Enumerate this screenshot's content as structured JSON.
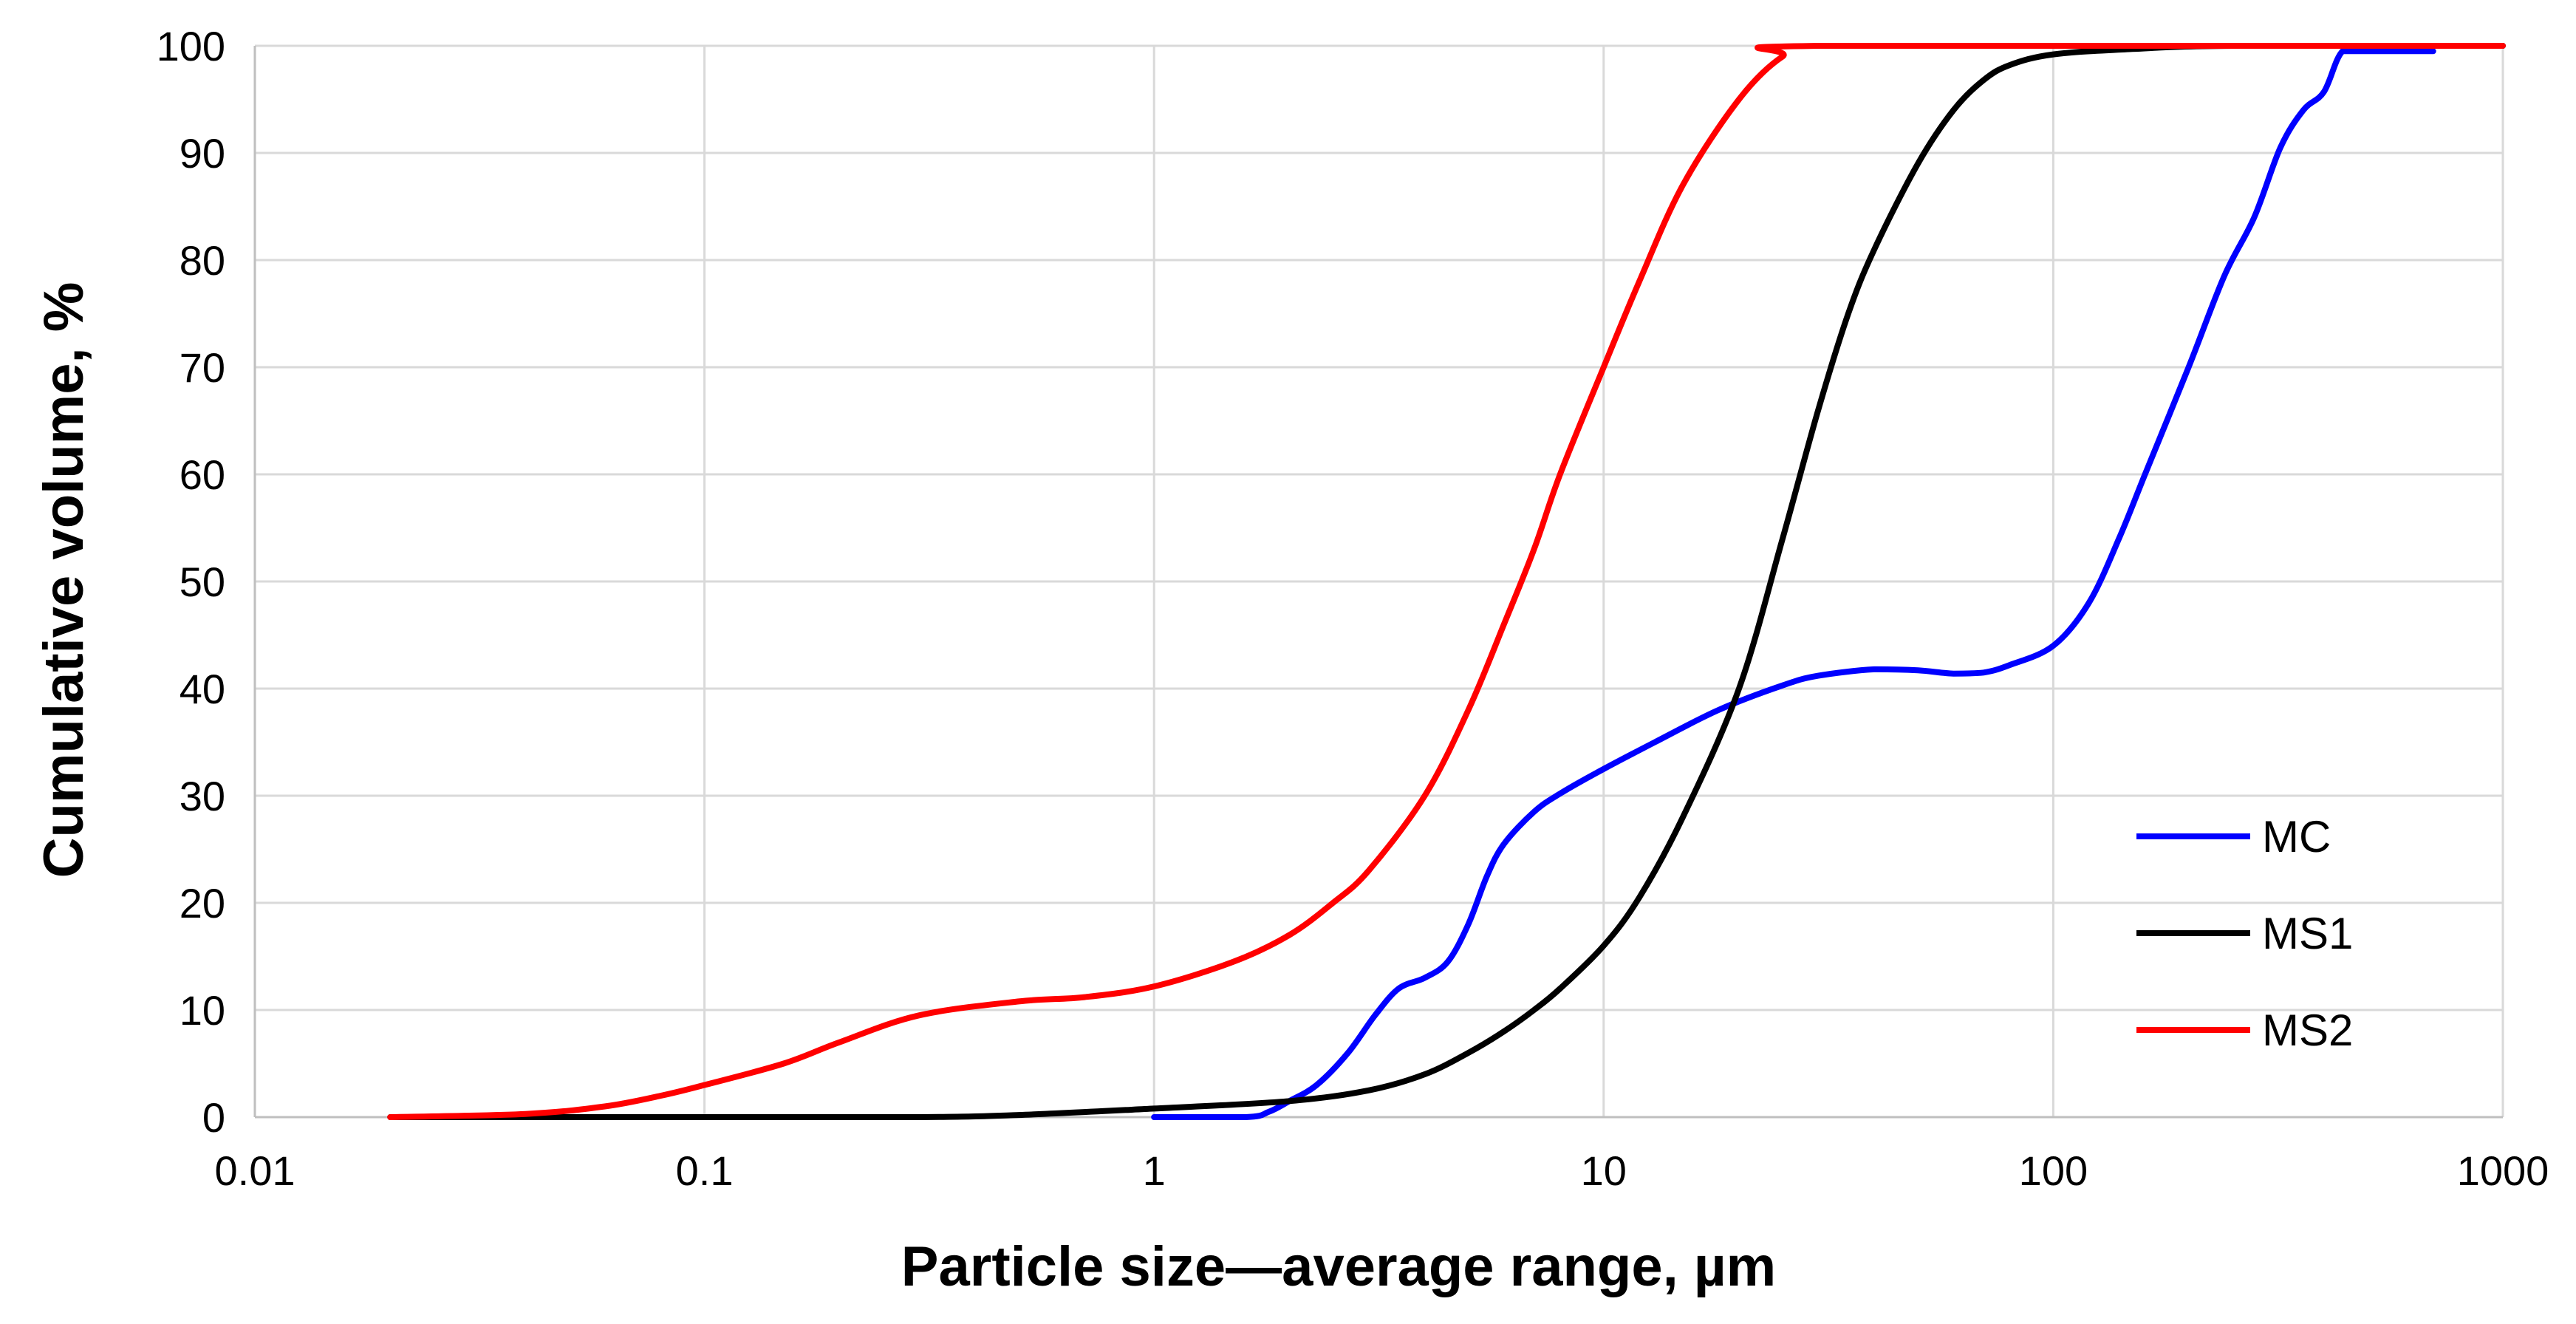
{
  "chart_data": {
    "type": "line",
    "x_scale": "log",
    "xlabel": "Particle size—average range, µm",
    "ylabel": "Cumulative volume, %",
    "xlim": [
      0.01,
      1000
    ],
    "ylim": [
      0,
      100
    ],
    "x_ticks": [
      0.01,
      0.1,
      1,
      10,
      100,
      1000
    ],
    "x_tick_labels": [
      "0.01",
      "0.1",
      "1",
      "10",
      "100",
      "1000"
    ],
    "y_ticks": [
      0,
      10,
      20,
      30,
      40,
      50,
      60,
      70,
      80,
      90,
      100
    ],
    "y_tick_labels": [
      "0",
      "10",
      "20",
      "30",
      "40",
      "50",
      "60",
      "70",
      "80",
      "90",
      "100"
    ],
    "grid": true,
    "legend_position": "bottom-right",
    "series": [
      {
        "name": "MC",
        "color": "#0000ff",
        "points": [
          [
            1.0,
            0
          ],
          [
            1.6,
            0
          ],
          [
            1.8,
            0.5
          ],
          [
            2.0,
            1.5
          ],
          [
            2.3,
            3
          ],
          [
            2.7,
            6
          ],
          [
            3.1,
            9.5
          ],
          [
            3.5,
            12
          ],
          [
            4.0,
            13
          ],
          [
            4.5,
            14.5
          ],
          [
            5.0,
            18
          ],
          [
            5.5,
            22.5
          ],
          [
            6.0,
            25.5
          ],
          [
            7.0,
            28.5
          ],
          [
            8.0,
            30.2
          ],
          [
            10.0,
            32.5
          ],
          [
            13.0,
            35
          ],
          [
            18.0,
            38
          ],
          [
            25.0,
            40.3
          ],
          [
            30.0,
            41.2
          ],
          [
            40.0,
            41.8
          ],
          [
            50.0,
            41.7
          ],
          [
            60.0,
            41.4
          ],
          [
            70.0,
            41.5
          ],
          [
            80.0,
            42.2
          ],
          [
            100.0,
            44
          ],
          [
            120.0,
            48
          ],
          [
            140.0,
            54
          ],
          [
            160.0,
            60
          ],
          [
            200.0,
            70
          ],
          [
            240.0,
            78.5
          ],
          [
            280.0,
            84
          ],
          [
            320.0,
            90.5
          ],
          [
            360.0,
            94
          ],
          [
            400.0,
            95.7
          ],
          [
            440.0,
            99.5
          ],
          [
            500.0,
            99.5
          ],
          [
            700.0,
            99.5
          ]
        ]
      },
      {
        "name": "MS1",
        "color": "#000000",
        "points": [
          [
            0.02,
            0
          ],
          [
            0.1,
            0
          ],
          [
            0.3,
            0
          ],
          [
            0.5,
            0.2
          ],
          [
            1.0,
            0.8
          ],
          [
            2.0,
            1.5
          ],
          [
            3.0,
            2.5
          ],
          [
            4.0,
            4
          ],
          [
            5.0,
            6
          ],
          [
            6.0,
            8
          ],
          [
            7.0,
            10
          ],
          [
            8.0,
            12
          ],
          [
            10.0,
            16
          ],
          [
            12.0,
            20.5
          ],
          [
            15.0,
            28
          ],
          [
            20.0,
            40
          ],
          [
            25.0,
            54
          ],
          [
            30.0,
            66
          ],
          [
            35.0,
            75
          ],
          [
            40.0,
            81
          ],
          [
            50.0,
            89
          ],
          [
            60.0,
            94
          ],
          [
            70.0,
            96.8
          ],
          [
            80.0,
            98.2
          ],
          [
            100.0,
            99.2
          ],
          [
            150.0,
            99.7
          ],
          [
            250.0,
            100
          ],
          [
            1000.0,
            100
          ]
        ]
      },
      {
        "name": "MS2",
        "color": "#ff0000",
        "points": [
          [
            0.02,
            0
          ],
          [
            0.04,
            0.3
          ],
          [
            0.06,
            1
          ],
          [
            0.08,
            2
          ],
          [
            0.1,
            3
          ],
          [
            0.15,
            5
          ],
          [
            0.2,
            7
          ],
          [
            0.3,
            9.5
          ],
          [
            0.5,
            10.8
          ],
          [
            0.7,
            11.2
          ],
          [
            1.0,
            12.2
          ],
          [
            1.5,
            14.5
          ],
          [
            2.0,
            17
          ],
          [
            2.5,
            20
          ],
          [
            3.0,
            23
          ],
          [
            4.0,
            30
          ],
          [
            5.0,
            38
          ],
          [
            6.0,
            46
          ],
          [
            7.0,
            53
          ],
          [
            8.0,
            60
          ],
          [
            10.0,
            70
          ],
          [
            12.0,
            78
          ],
          [
            15.0,
            87
          ],
          [
            20.0,
            95
          ],
          [
            25.0,
            99
          ],
          [
            30.0,
            100
          ],
          [
            1000.0,
            100
          ]
        ]
      }
    ]
  }
}
